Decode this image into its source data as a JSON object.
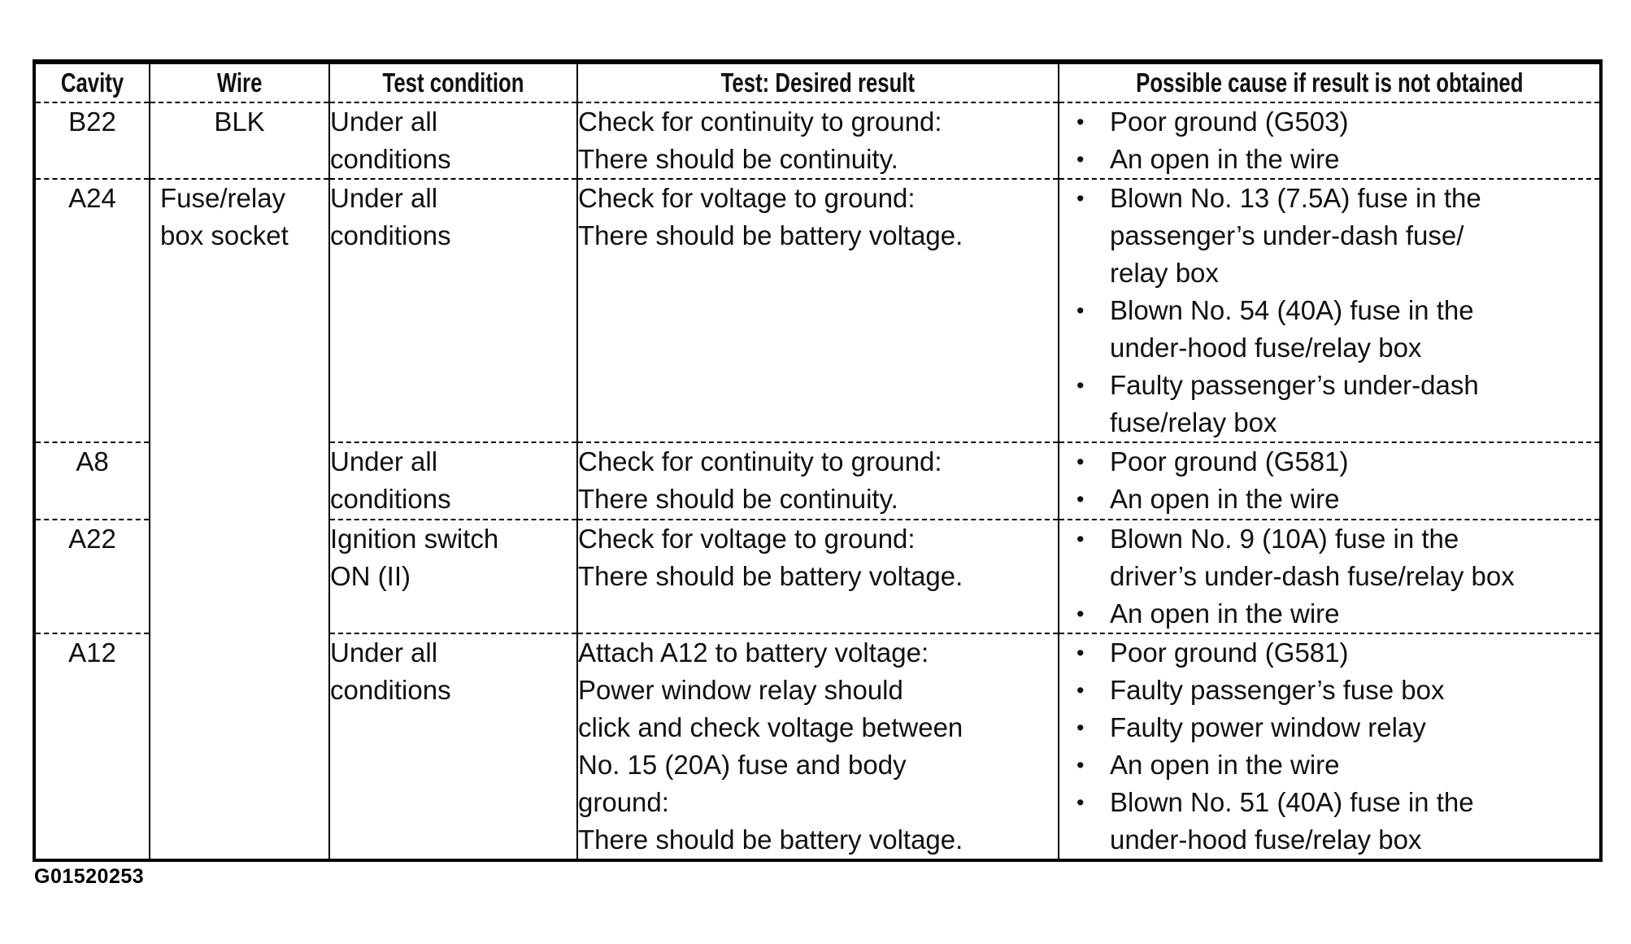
{
  "figure_id": "G01520253",
  "table": {
    "bullet": "•",
    "headers": [
      "Cavity",
      "Wire",
      "Test condition",
      "Test: Desired result",
      "Possible cause if result is not obtained"
    ],
    "rows": [
      {
        "cavity": "B22",
        "wire": {
          "lines": [
            "BLK"
          ],
          "rowspan": 1
        },
        "condition_lines": [
          "Under all",
          "conditions"
        ],
        "test_lines": [
          "Check for continuity to ground:",
          "There should be continuity."
        ],
        "causes": [
          [
            "Poor ground (G503)"
          ],
          [
            "An open in the wire"
          ]
        ]
      },
      {
        "cavity": "A24",
        "wire": {
          "lines": [
            "Fuse/relay",
            "box socket"
          ],
          "rowspan": 4
        },
        "condition_lines": [
          "Under all",
          "conditions"
        ],
        "test_lines": [
          "Check for voltage to ground:",
          "There should be battery voltage."
        ],
        "causes": [
          [
            "Blown No. 13 (7.5A) fuse in the",
            "passenger’s under-dash fuse/",
            "relay box"
          ],
          [
            "Blown No. 54 (40A) fuse in the",
            "under-hood fuse/relay box"
          ],
          [
            "Faulty passenger’s under-dash",
            "fuse/relay box"
          ]
        ]
      },
      {
        "cavity": "A8",
        "condition_lines": [
          "Under all",
          "conditions"
        ],
        "test_lines": [
          "Check for continuity to ground:",
          "There should be continuity."
        ],
        "causes": [
          [
            "Poor ground (G581)"
          ],
          [
            "An open in the wire"
          ]
        ]
      },
      {
        "cavity": "A22",
        "condition_lines": [
          "Ignition switch",
          "ON (II)"
        ],
        "test_lines": [
          "Check for voltage to ground:",
          "There should be battery voltage."
        ],
        "causes": [
          [
            "Blown No. 9 (10A) fuse in the",
            "driver’s under-dash fuse/relay box"
          ],
          [
            "An open in the wire"
          ]
        ]
      },
      {
        "cavity": "A12",
        "condition_lines": [
          "Under all",
          "conditions"
        ],
        "test_lines": [
          "Attach A12 to battery voltage:",
          "Power window relay should",
          "click and check voltage between",
          "No. 15 (20A) fuse and body",
          "ground:",
          "There should be battery voltage."
        ],
        "causes": [
          [
            "Poor ground (G581)"
          ],
          [
            "Faulty passenger’s fuse box"
          ],
          [
            "Faulty power window relay"
          ],
          [
            "An open in the wire"
          ],
          [
            "Blown No. 51 (40A) fuse in the",
            "under-hood fuse/relay box"
          ]
        ]
      }
    ]
  }
}
